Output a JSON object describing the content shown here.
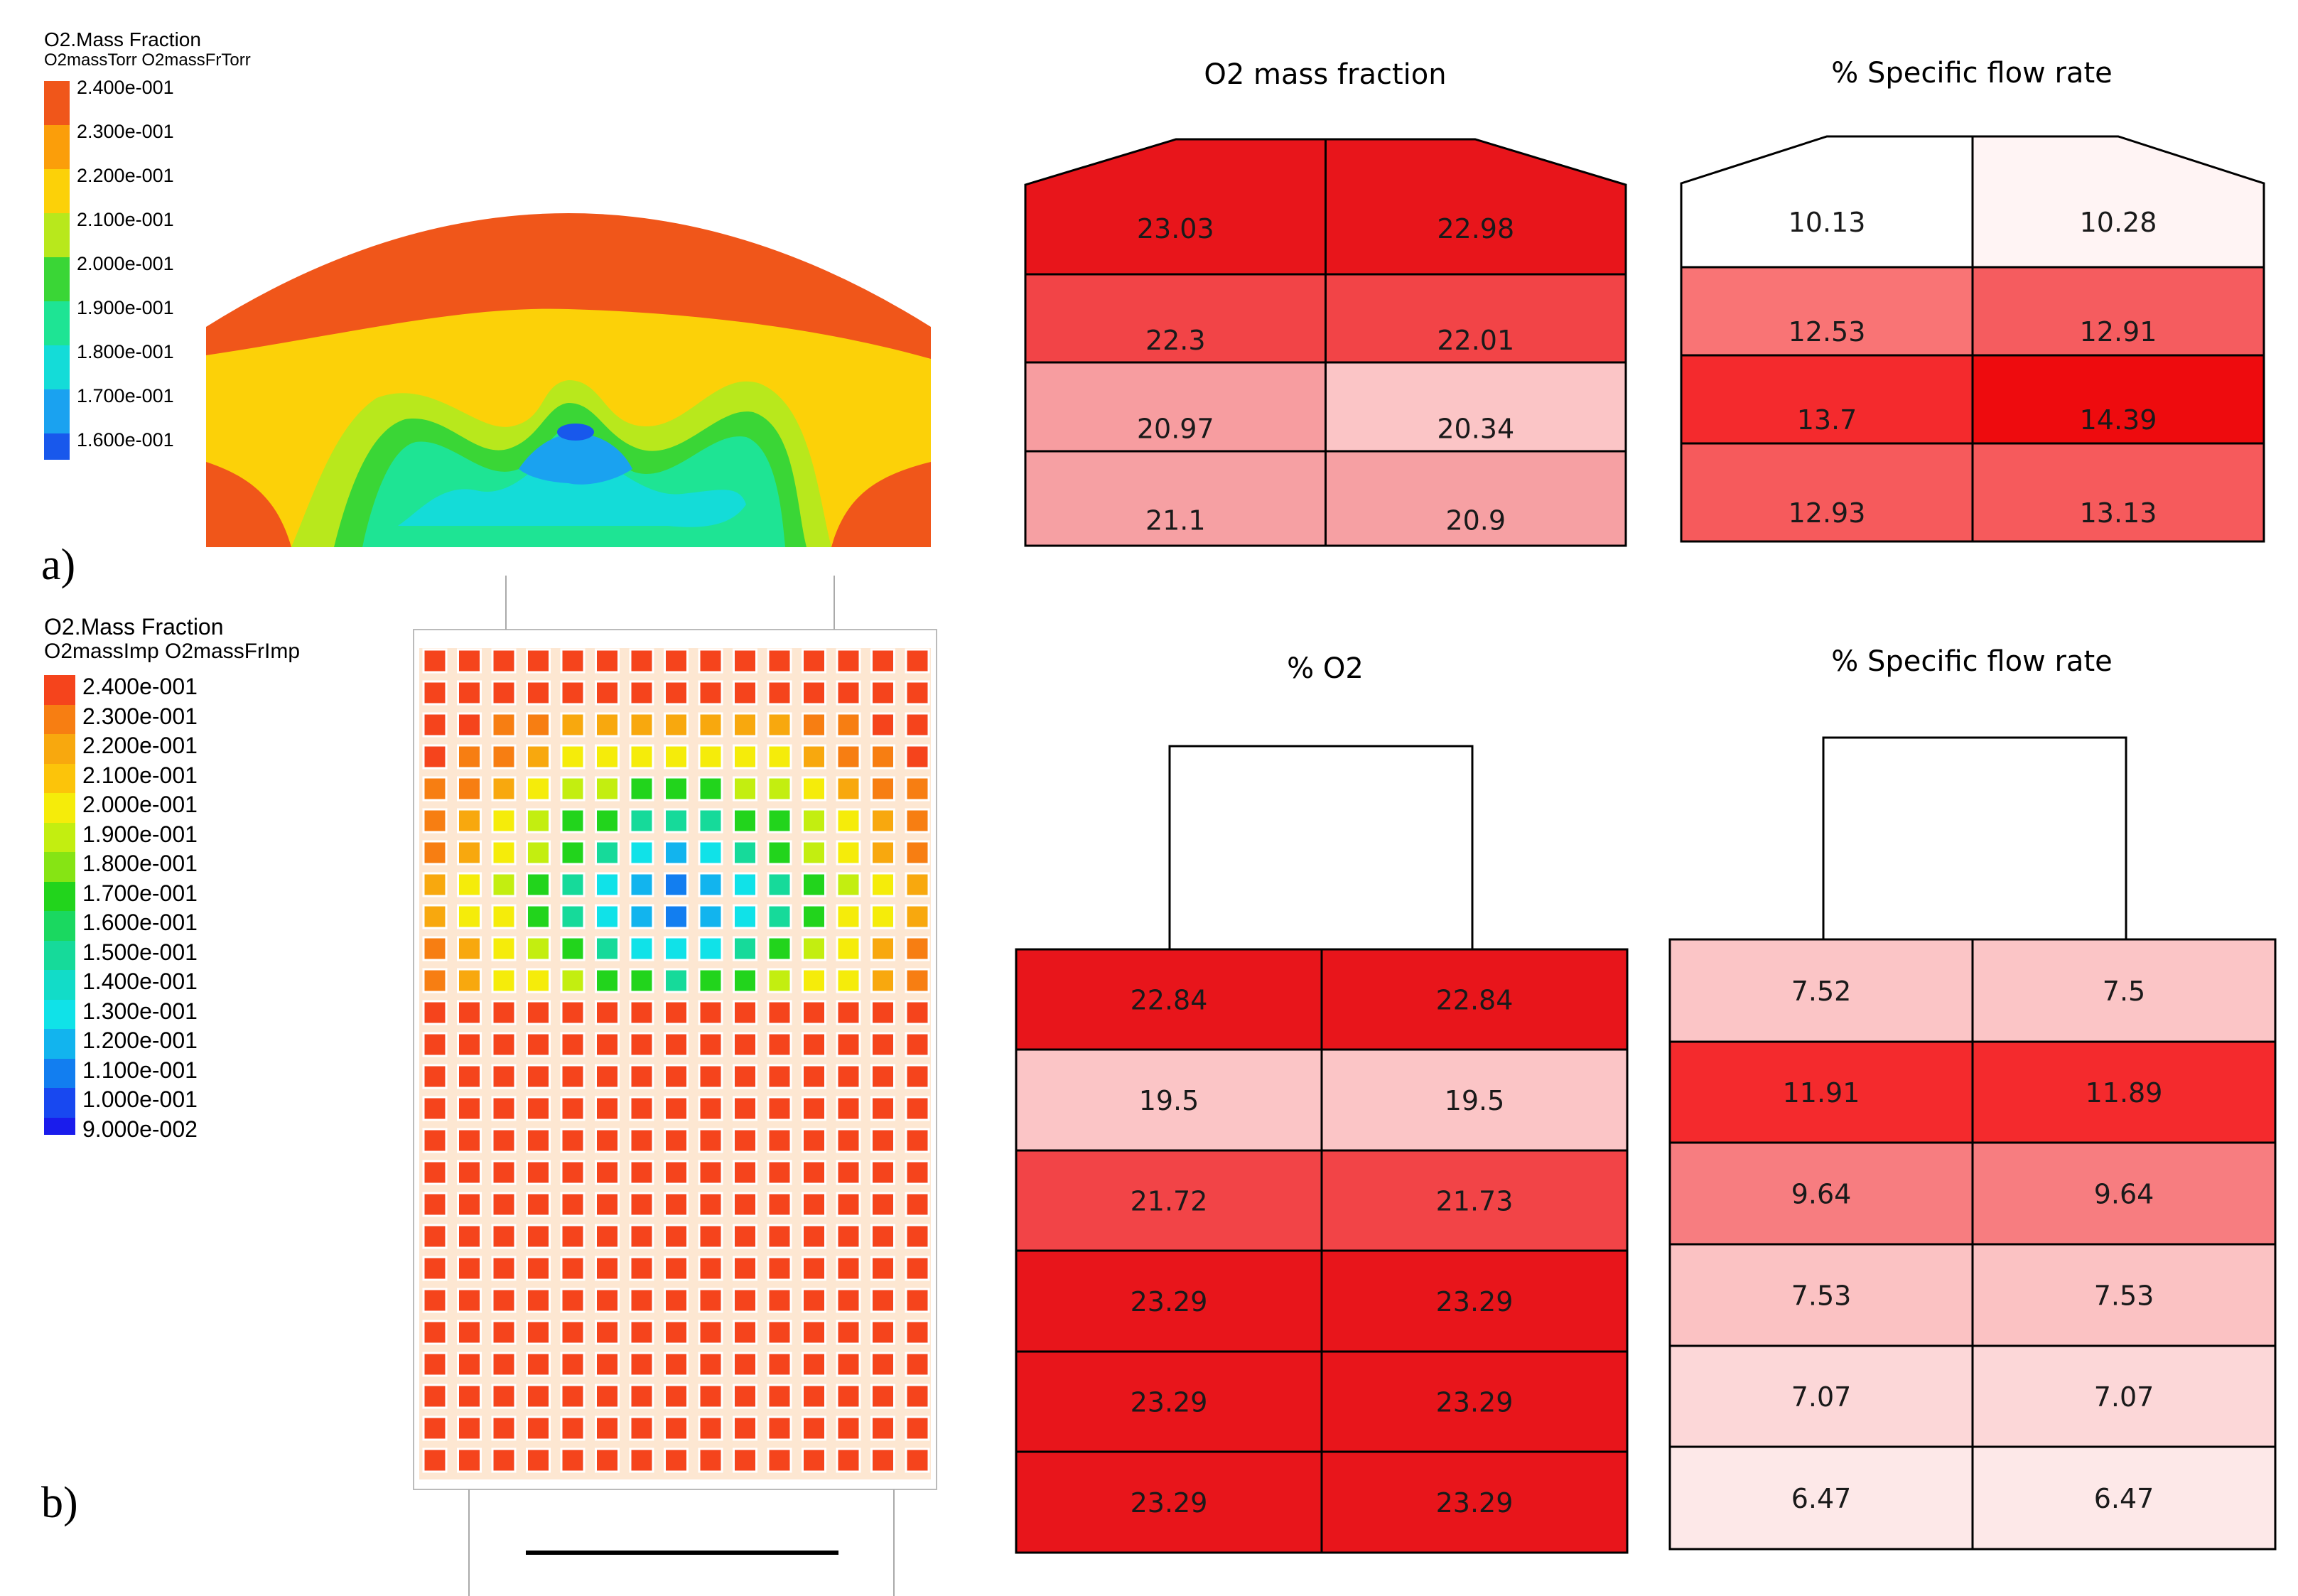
{
  "panel_a": {
    "label": "a)",
    "legend": {
      "title": "O2.Mass Fraction",
      "subtitle": "O2massTorr O2massFrTorr",
      "levels": [
        {
          "label": "2.400e-001",
          "color": "#f0561a"
        },
        {
          "label": "2.300e-001",
          "color": "#fb9e0a"
        },
        {
          "label": "2.200e-001",
          "color": "#fcd108"
        },
        {
          "label": "2.100e-001",
          "color": "#b8e81c"
        },
        {
          "label": "2.000e-001",
          "color": "#3ad636"
        },
        {
          "label": "1.900e-001",
          "color": "#1ee494"
        },
        {
          "label": "1.800e-001",
          "color": "#14dcd8"
        },
        {
          "label": "1.700e-001",
          "color": "#1aa2f0"
        },
        {
          "label": "1.600e-001",
          "color": "#1858ec"
        }
      ]
    },
    "table_left": {
      "title": "O2 mass fraction",
      "rows": [
        [
          "23.03",
          "22.98"
        ],
        [
          "22.3",
          "22.01"
        ],
        [
          "20.97",
          "20.34"
        ],
        [
          "21.1",
          "20.9"
        ]
      ],
      "colors": [
        [
          "#e8151b",
          "#e8151b"
        ],
        [
          "#f24447",
          "#f24447"
        ],
        [
          "#f79da0",
          "#fbc5c6"
        ],
        [
          "#f6a0a3",
          "#f6a0a3"
        ]
      ]
    },
    "table_right": {
      "title": "% Specific flow rate",
      "rows": [
        [
          "10.13",
          "10.28"
        ],
        [
          "12.53",
          "12.91"
        ],
        [
          "13.7",
          "14.39"
        ],
        [
          "12.93",
          "13.13"
        ]
      ],
      "colors": [
        [
          "#ffffff",
          "#fff4f4"
        ],
        [
          "#f97475",
          "#f55c5f"
        ],
        [
          "#f42a2d",
          "#ee0b0e"
        ],
        [
          "#f65a5c",
          "#f65a5c"
        ]
      ]
    }
  },
  "panel_b": {
    "label": "b)",
    "legend": {
      "title": "O2.Mass Fraction",
      "subtitle": "O2massImp O2massFrImp",
      "levels": [
        {
          "label": "2.400e-001",
          "color": "#f5441c"
        },
        {
          "label": "2.300e-001",
          "color": "#f77e12"
        },
        {
          "label": "2.200e-001",
          "color": "#f8a80e"
        },
        {
          "label": "2.100e-001",
          "color": "#fcc40a"
        },
        {
          "label": "2.000e-001",
          "color": "#f5ec0a"
        },
        {
          "label": "1.900e-001",
          "color": "#c3ee10"
        },
        {
          "label": "1.800e-001",
          "color": "#86e414"
        },
        {
          "label": "1.700e-001",
          "color": "#22d41c"
        },
        {
          "label": "1.600e-001",
          "color": "#1ad860"
        },
        {
          "label": "1.500e-001",
          "color": "#16da9a"
        },
        {
          "label": "1.400e-001",
          "color": "#12dcc8"
        },
        {
          "label": "1.300e-001",
          "color": "#10e2e8"
        },
        {
          "label": "1.200e-001",
          "color": "#12b4ee"
        },
        {
          "label": "1.100e-001",
          "color": "#127ef0"
        },
        {
          "label": "1.000e-001",
          "color": "#1848f0"
        },
        {
          "label": "9.000e-002",
          "color": "#1a1cec"
        }
      ]
    },
    "table_left": {
      "title": "% O2",
      "rows": [
        [
          "22.84",
          "22.84"
        ],
        [
          "19.5",
          "19.5"
        ],
        [
          "21.72",
          "21.73"
        ],
        [
          "23.29",
          "23.29"
        ],
        [
          "23.29",
          "23.29"
        ],
        [
          "23.29",
          "23.29"
        ]
      ],
      "colors": [
        [
          "#e8151b",
          "#e8151b"
        ],
        [
          "#fbc5c6",
          "#fbc5c6"
        ],
        [
          "#f24447",
          "#f24447"
        ],
        [
          "#e8151b",
          "#e8151b"
        ],
        [
          "#e8151b",
          "#e8151b"
        ],
        [
          "#e8151b",
          "#e8151b"
        ]
      ]
    },
    "table_right": {
      "title": "% Specific flow rate",
      "rows": [
        [
          "7.52",
          "7.5"
        ],
        [
          "11.91",
          "11.89"
        ],
        [
          "9.64",
          "9.64"
        ],
        [
          "7.53",
          "7.53"
        ],
        [
          "7.07",
          "7.07"
        ],
        [
          "6.47",
          "6.47"
        ]
      ],
      "colors": [
        [
          "#fbc5c6",
          "#fbc5c6"
        ],
        [
          "#f42a2d",
          "#f42a2d"
        ],
        [
          "#f77d80",
          "#f77d80"
        ],
        [
          "#fbc2c3",
          "#fbc2c3"
        ],
        [
          "#fcd7d8",
          "#fcd7d8"
        ],
        [
          "#fde8e8",
          "#fde8e8"
        ]
      ]
    }
  }
}
